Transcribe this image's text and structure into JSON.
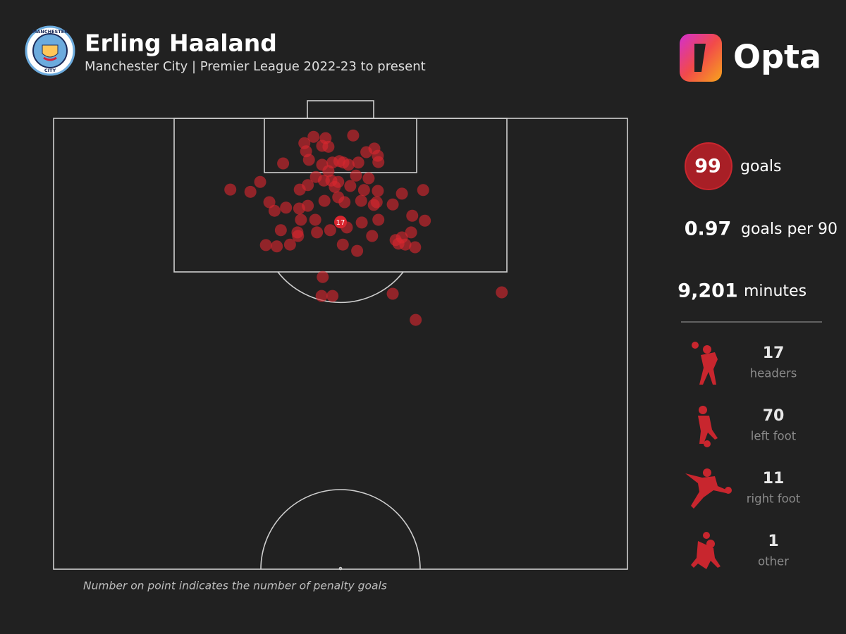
{
  "header": {
    "title": "Erling Haaland",
    "subtitle": "Manchester City | Premier League 2022-23 to present",
    "badge_top": "MANCHESTER",
    "badge_bottom": "CITY",
    "brand": "Opta"
  },
  "chart_data": {
    "type": "scatter",
    "color": "#d9262f",
    "xlim": [
      0,
      100
    ],
    "ylim": [
      0,
      100
    ],
    "x": [
      45.3,
      47.4,
      52.2,
      43.7,
      46.8,
      47.9,
      55.9,
      54.5,
      44.0,
      56.5,
      44.5,
      40.0,
      46.8,
      48.6,
      49.8,
      50.5,
      51.4,
      53.1,
      56.6,
      47.9,
      52.7,
      45.7,
      47.1,
      48.4,
      49.6,
      54.9,
      49.0,
      54.1,
      44.3,
      42.9,
      36.0,
      30.8,
      34.3,
      51.7,
      56.5,
      60.7,
      64.4,
      37.6,
      38.5,
      40.5,
      42.8,
      44.3,
      47.2,
      49.6,
      50.7,
      53.6,
      56.3,
      55.8,
      59.1,
      43.1,
      45.6,
      48.2,
      51.1,
      53.7,
      56.6,
      62.5,
      64.7,
      39.6,
      42.5,
      45.9,
      55.5,
      59.6,
      60.7,
      62.3,
      61.3,
      60.1,
      63.0,
      37.0,
      38.9,
      41.2,
      42.6,
      50.4,
      52.9,
      46.9,
      46.7,
      48.6,
      59.1,
      78.1,
      63.1
    ],
    "y": [
      4.1,
      4.4,
      3.8,
      5.5,
      6.1,
      6.3,
      6.7,
      7.5,
      7.3,
      8.3,
      9.2,
      10.0,
      10.3,
      9.8,
      9.5,
      9.8,
      10.3,
      9.8,
      9.7,
      11.7,
      12.7,
      13.0,
      13.8,
      13.8,
      14.1,
      13.3,
      15.2,
      15.9,
      14.8,
      15.8,
      14.1,
      15.8,
      16.3,
      15.0,
      16.1,
      16.7,
      15.9,
      18.6,
      20.5,
      19.8,
      20.0,
      19.4,
      18.3,
      17.5,
      18.6,
      18.3,
      18.6,
      19.2,
      19.1,
      22.5,
      22.5,
      24.8,
      24.2,
      23.1,
      22.5,
      21.6,
      22.7,
      24.8,
      25.3,
      25.3,
      26.1,
      27.0,
      26.4,
      25.3,
      28.0,
      27.8,
      28.6,
      28.1,
      28.4,
      28.0,
      26.1,
      28.0,
      29.4,
      35.2,
      39.4,
      39.4,
      38.9,
      38.6,
      44.7
    ],
    "penalty_point": {
      "x": 50.0,
      "y": 23.0,
      "label": 17
    },
    "footnote": "Number on point indicates the number of penalty goals"
  },
  "stats": [
    {
      "value": 99,
      "label": "goals"
    },
    {
      "value": 0.97,
      "label": "goals per 90"
    },
    {
      "value": "9,201",
      "label": "minutes"
    }
  ],
  "breakdown": [
    {
      "value": 17,
      "label": "headers"
    },
    {
      "value": 70,
      "label": "left foot"
    },
    {
      "value": 11,
      "label": "right foot"
    },
    {
      "value": 1,
      "label": "other"
    }
  ]
}
